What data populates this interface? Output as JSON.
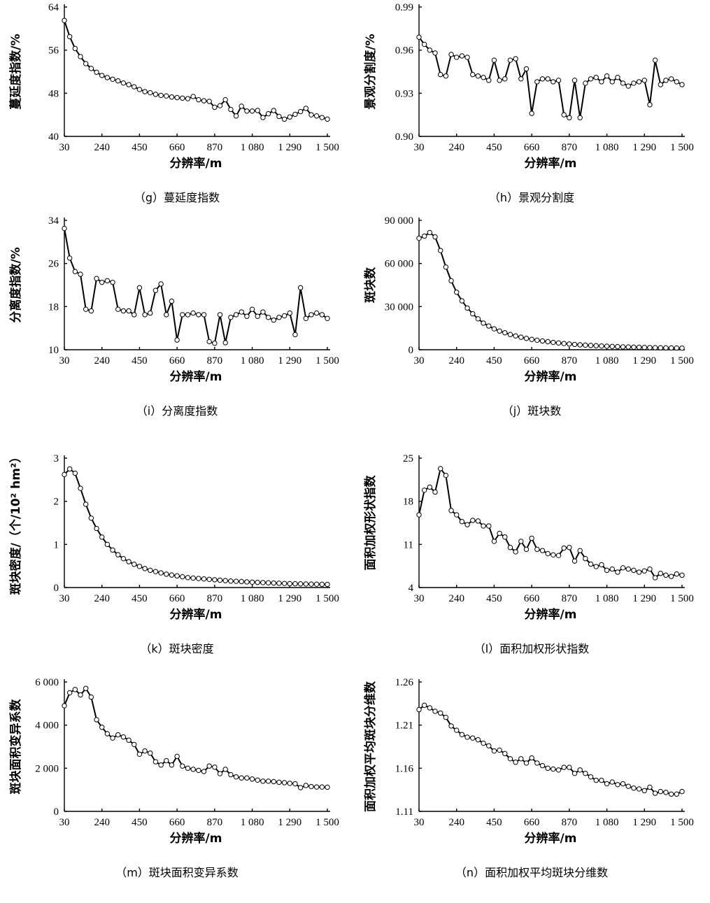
{
  "chart_data": [
    {
      "type": "line",
      "id": "g",
      "caption": "（g）蔓延度指数",
      "xlabel": "分辨率/m",
      "ylabel": "蔓延度指数/%",
      "x_ticks": [
        "30",
        "240",
        "450",
        "660",
        "870",
        "1 080",
        "1 290",
        "1 500"
      ],
      "xlim": [
        30,
        1500
      ],
      "y_ticks": [
        "40",
        "48",
        "56",
        "64"
      ],
      "ylim": [
        40,
        64
      ],
      "series": [
        {
          "x": [
            30,
            60,
            90,
            120,
            150,
            180,
            210,
            240,
            270,
            300,
            330,
            360,
            390,
            420,
            450,
            480,
            510,
            540,
            570,
            600,
            630,
            660,
            690,
            720,
            750,
            780,
            810,
            840,
            870,
            900,
            930,
            960,
            990,
            1020,
            1050,
            1080,
            1110,
            1140,
            1170,
            1200,
            1230,
            1260,
            1290,
            1320,
            1350,
            1380,
            1410,
            1440,
            1470,
            1500
          ],
          "values": [
            61.5,
            58.5,
            56.3,
            54.8,
            53.5,
            52.6,
            51.9,
            51.3,
            50.9,
            50.6,
            50.3,
            49.9,
            49.6,
            49.2,
            48.7,
            48.3,
            48.1,
            47.8,
            47.6,
            47.5,
            47.3,
            47.2,
            47.1,
            47.0,
            47.4,
            46.8,
            46.6,
            46.5,
            45.4,
            45.7,
            46.8,
            45.0,
            43.8,
            45.6,
            44.7,
            44.7,
            44.8,
            43.5,
            44.2,
            44.8,
            43.7,
            43.2,
            43.6,
            44.1,
            44.6,
            45.2,
            44.0,
            43.8,
            43.5,
            43.2
          ]
        }
      ]
    },
    {
      "type": "line",
      "id": "h",
      "caption": "（h）景观分割度",
      "xlabel": "分辨率/m",
      "ylabel": "景观分割度/%",
      "x_ticks": [
        "30",
        "240",
        "450",
        "660",
        "870",
        "1 080",
        "1 290",
        "1 500"
      ],
      "xlim": [
        30,
        1500
      ],
      "y_ticks": [
        "0.90",
        "0.93",
        "0.96",
        "0.99"
      ],
      "ylim": [
        0.9,
        0.99
      ],
      "series": [
        {
          "x": [
            30,
            60,
            90,
            120,
            150,
            180,
            210,
            240,
            270,
            300,
            330,
            360,
            390,
            420,
            450,
            480,
            510,
            540,
            570,
            600,
            630,
            660,
            690,
            720,
            750,
            780,
            810,
            840,
            870,
            900,
            930,
            960,
            990,
            1020,
            1050,
            1080,
            1110,
            1140,
            1170,
            1200,
            1230,
            1260,
            1290,
            1320,
            1350,
            1380,
            1410,
            1440,
            1470,
            1500
          ],
          "values": [
            0.969,
            0.964,
            0.96,
            0.958,
            0.943,
            0.942,
            0.957,
            0.955,
            0.956,
            0.955,
            0.943,
            0.942,
            0.941,
            0.939,
            0.953,
            0.939,
            0.94,
            0.953,
            0.954,
            0.94,
            0.947,
            0.916,
            0.938,
            0.94,
            0.94,
            0.938,
            0.939,
            0.915,
            0.913,
            0.939,
            0.913,
            0.937,
            0.94,
            0.941,
            0.938,
            0.942,
            0.938,
            0.941,
            0.937,
            0.935,
            0.937,
            0.938,
            0.939,
            0.922,
            0.953,
            0.936,
            0.939,
            0.94,
            0.938,
            0.936
          ]
        }
      ]
    },
    {
      "type": "line",
      "id": "i",
      "caption": "（i）分离度指数",
      "xlabel": "分辨率/m",
      "ylabel": "分离度指数/%",
      "x_ticks": [
        "30",
        "240",
        "450",
        "660",
        "870",
        "1 080",
        "1 290",
        "1 500"
      ],
      "xlim": [
        30,
        1500
      ],
      "y_ticks": [
        "10",
        "18",
        "26",
        "34"
      ],
      "ylim": [
        10,
        34
      ],
      "series": [
        {
          "x": [
            30,
            60,
            90,
            120,
            150,
            180,
            210,
            240,
            270,
            300,
            330,
            360,
            390,
            420,
            450,
            480,
            510,
            540,
            570,
            600,
            630,
            660,
            690,
            720,
            750,
            780,
            810,
            840,
            870,
            900,
            930,
            960,
            990,
            1020,
            1050,
            1080,
            1110,
            1140,
            1170,
            1200,
            1230,
            1260,
            1290,
            1320,
            1350,
            1380,
            1410,
            1440,
            1470,
            1500
          ],
          "values": [
            32.5,
            27.0,
            24.5,
            24.0,
            17.5,
            17.2,
            23.2,
            22.5,
            22.8,
            22.5,
            17.5,
            17.2,
            17.2,
            16.5,
            21.5,
            16.5,
            16.8,
            21.0,
            22.2,
            16.5,
            19.0,
            11.8,
            16.5,
            16.5,
            16.8,
            16.5,
            16.5,
            11.5,
            11.2,
            16.5,
            11.3,
            16.0,
            16.5,
            17.0,
            16.2,
            17.5,
            16.2,
            17.0,
            16.0,
            15.5,
            16.0,
            16.3,
            16.8,
            12.8,
            21.5,
            15.8,
            16.5,
            16.8,
            16.5,
            15.8
          ]
        }
      ]
    },
    {
      "type": "line",
      "id": "j",
      "caption": "（j）斑块数",
      "xlabel": "分辨率/m",
      "ylabel": "斑块数",
      "x_ticks": [
        "30",
        "240",
        "450",
        "660",
        "870",
        "1 080",
        "1 290",
        "1 500"
      ],
      "xlim": [
        30,
        1500
      ],
      "y_ticks": [
        "0",
        "30 000",
        "60 000",
        "90 000"
      ],
      "ylim": [
        0,
        90000
      ],
      "series": [
        {
          "x": [
            30,
            60,
            90,
            120,
            150,
            180,
            210,
            240,
            270,
            300,
            330,
            360,
            390,
            420,
            450,
            480,
            510,
            540,
            570,
            600,
            630,
            660,
            690,
            720,
            750,
            780,
            810,
            840,
            870,
            900,
            930,
            960,
            990,
            1020,
            1050,
            1080,
            1110,
            1140,
            1170,
            1200,
            1230,
            1260,
            1290,
            1320,
            1350,
            1380,
            1410,
            1440,
            1470,
            1500
          ],
          "values": [
            77500,
            79000,
            81500,
            78500,
            69000,
            57500,
            48000,
            40000,
            34000,
            29000,
            25000,
            21500,
            18500,
            16500,
            14500,
            13000,
            11800,
            10600,
            9600,
            8700,
            7900,
            7200,
            6600,
            6100,
            5600,
            5100,
            4700,
            4300,
            4000,
            3700,
            3400,
            3200,
            3000,
            2800,
            2600,
            2450,
            2300,
            2150,
            2000,
            1900,
            1800,
            1700,
            1600,
            1500,
            1430,
            1360,
            1300,
            1240,
            1180,
            1130
          ]
        }
      ]
    },
    {
      "type": "line",
      "id": "k",
      "caption": "（k）斑块密度",
      "xlabel": "分辨率/m",
      "ylabel": "斑块密度/（个/10² hm²）",
      "x_ticks": [
        "30",
        "240",
        "450",
        "660",
        "870",
        "1 080",
        "1 290",
        "1 500"
      ],
      "xlim": [
        30,
        1500
      ],
      "y_ticks": [
        "0",
        "1",
        "2",
        "3"
      ],
      "ylim": [
        0,
        3
      ],
      "series": [
        {
          "x": [
            30,
            60,
            90,
            120,
            150,
            180,
            210,
            240,
            270,
            300,
            330,
            360,
            390,
            420,
            450,
            480,
            510,
            540,
            570,
            600,
            630,
            660,
            690,
            720,
            750,
            780,
            810,
            840,
            870,
            900,
            930,
            960,
            990,
            1020,
            1050,
            1080,
            1110,
            1140,
            1170,
            1200,
            1230,
            1260,
            1290,
            1320,
            1350,
            1380,
            1410,
            1440,
            1470,
            1500
          ],
          "values": [
            2.62,
            2.75,
            2.65,
            2.3,
            1.93,
            1.61,
            1.37,
            1.17,
            1.0,
            0.87,
            0.76,
            0.67,
            0.6,
            0.54,
            0.49,
            0.44,
            0.4,
            0.37,
            0.34,
            0.31,
            0.29,
            0.27,
            0.25,
            0.23,
            0.22,
            0.21,
            0.2,
            0.19,
            0.18,
            0.17,
            0.16,
            0.15,
            0.145,
            0.14,
            0.13,
            0.125,
            0.12,
            0.115,
            0.11,
            0.105,
            0.1,
            0.095,
            0.09,
            0.088,
            0.085,
            0.082,
            0.08,
            0.078,
            0.075,
            0.073
          ]
        }
      ]
    },
    {
      "type": "line",
      "id": "l",
      "caption": "（l）面积加权形状指数",
      "xlabel": "分辨率/m",
      "ylabel": "面积加权形状指数",
      "x_ticks": [
        "30",
        "240",
        "450",
        "660",
        "870",
        "1 080",
        "1 290",
        "1 500"
      ],
      "xlim": [
        30,
        1500
      ],
      "y_ticks": [
        "4",
        "11",
        "18",
        "25"
      ],
      "ylim": [
        4,
        25
      ],
      "series": [
        {
          "x": [
            30,
            60,
            90,
            120,
            150,
            180,
            210,
            240,
            270,
            300,
            330,
            360,
            390,
            420,
            450,
            480,
            510,
            540,
            570,
            600,
            630,
            660,
            690,
            720,
            750,
            780,
            810,
            840,
            870,
            900,
            930,
            960,
            990,
            1020,
            1050,
            1080,
            1110,
            1140,
            1170,
            1200,
            1230,
            1260,
            1290,
            1320,
            1350,
            1380,
            1410,
            1440,
            1470,
            1500
          ],
          "values": [
            15.8,
            19.8,
            20.3,
            19.5,
            23.3,
            22.2,
            16.5,
            15.8,
            14.7,
            14.2,
            14.9,
            14.8,
            14.0,
            14.0,
            11.5,
            12.8,
            12.2,
            10.5,
            9.8,
            11.5,
            10.2,
            12.0,
            10.2,
            10.0,
            9.5,
            9.3,
            9.2,
            10.4,
            10.5,
            8.3,
            10.0,
            8.7,
            7.8,
            7.4,
            7.7,
            6.8,
            7.0,
            6.5,
            7.2,
            7.0,
            6.8,
            6.5,
            6.7,
            7.0,
            5.6,
            6.3,
            6.0,
            5.8,
            6.2,
            6.0
          ]
        }
      ]
    },
    {
      "type": "line",
      "id": "m",
      "caption": "（m）斑块面积变异系数",
      "xlabel": "分辨率/m",
      "ylabel": "斑块面积变异系数",
      "x_ticks": [
        "30",
        "240",
        "450",
        "660",
        "870",
        "1 080",
        "1 290",
        "1 500"
      ],
      "xlim": [
        30,
        1500
      ],
      "y_ticks": [
        "0",
        "2 000",
        "4 000",
        "6 000"
      ],
      "ylim": [
        0,
        6000
      ],
      "series": [
        {
          "x": [
            30,
            60,
            90,
            120,
            150,
            180,
            210,
            240,
            270,
            300,
            330,
            360,
            390,
            420,
            450,
            480,
            510,
            540,
            570,
            600,
            630,
            660,
            690,
            720,
            750,
            780,
            810,
            840,
            870,
            900,
            930,
            960,
            990,
            1020,
            1050,
            1080,
            1110,
            1140,
            1170,
            1200,
            1230,
            1260,
            1290,
            1320,
            1350,
            1380,
            1410,
            1440,
            1470,
            1500
          ],
          "values": [
            4900,
            5500,
            5650,
            5400,
            5700,
            5300,
            4250,
            3900,
            3600,
            3400,
            3550,
            3450,
            3300,
            3100,
            2650,
            2800,
            2700,
            2300,
            2150,
            2350,
            2150,
            2550,
            2100,
            2000,
            1950,
            1900,
            1850,
            2100,
            2050,
            1750,
            1950,
            1700,
            1600,
            1550,
            1550,
            1500,
            1450,
            1400,
            1400,
            1380,
            1350,
            1330,
            1300,
            1280,
            1100,
            1200,
            1150,
            1130,
            1130,
            1120
          ]
        }
      ]
    },
    {
      "type": "line",
      "id": "n",
      "caption": "（n）面积加权平均斑块分维数",
      "xlabel": "分辨率/m",
      "ylabel": "面积加权平均斑块分维数",
      "x_ticks": [
        "30",
        "240",
        "450",
        "660",
        "870",
        "1 080",
        "1 290",
        "1 500"
      ],
      "xlim": [
        30,
        1500
      ],
      "y_ticks": [
        "1.11",
        "1.16",
        "1.21",
        "1.26"
      ],
      "ylim": [
        1.11,
        1.26
      ],
      "series": [
        {
          "x": [
            30,
            60,
            90,
            120,
            150,
            180,
            210,
            240,
            270,
            300,
            330,
            360,
            390,
            420,
            450,
            480,
            510,
            540,
            570,
            600,
            630,
            660,
            690,
            720,
            750,
            780,
            810,
            840,
            870,
            900,
            930,
            960,
            990,
            1020,
            1050,
            1080,
            1110,
            1140,
            1170,
            1200,
            1230,
            1260,
            1290,
            1320,
            1350,
            1380,
            1410,
            1440,
            1470,
            1500
          ],
          "values": [
            1.228,
            1.233,
            1.23,
            1.226,
            1.224,
            1.219,
            1.209,
            1.204,
            1.199,
            1.196,
            1.195,
            1.193,
            1.189,
            1.186,
            1.18,
            1.181,
            1.177,
            1.171,
            1.167,
            1.171,
            1.166,
            1.172,
            1.166,
            1.163,
            1.16,
            1.159,
            1.158,
            1.161,
            1.161,
            1.154,
            1.158,
            1.154,
            1.15,
            1.146,
            1.146,
            1.142,
            1.144,
            1.141,
            1.142,
            1.139,
            1.137,
            1.136,
            1.134,
            1.138,
            1.131,
            1.133,
            1.132,
            1.13,
            1.13,
            1.133
          ]
        }
      ]
    }
  ]
}
